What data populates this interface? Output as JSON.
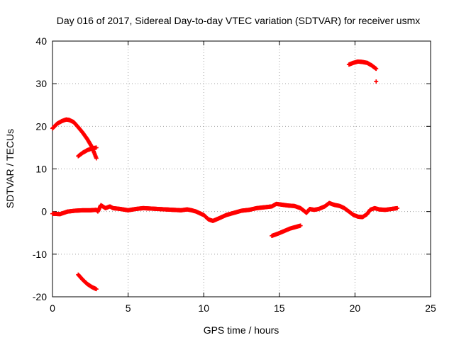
{
  "chart_data": {
    "type": "scatter",
    "title": "Day 016 of 2017, Sidereal Day-to-day VTEC variation (SDTVAR) for receiver usmx",
    "xlabel": "GPS time / hours",
    "ylabel": "SDTVAR / TECUs",
    "xlim": [
      0,
      25
    ],
    "ylim": [
      -20,
      40
    ],
    "xticks": [
      0,
      5,
      10,
      15,
      20,
      25
    ],
    "yticks": [
      -20,
      -10,
      0,
      10,
      20,
      30,
      40
    ],
    "grid": true,
    "marker": "plus",
    "color": "#ff0000",
    "series": [
      {
        "name": "main-track",
        "x": [
          0.0,
          0.5,
          1.0,
          1.5,
          2.0,
          2.5,
          2.9,
          3.0,
          3.2,
          3.5,
          3.8,
          4.0,
          4.5,
          5.0,
          5.5,
          6.0,
          6.5,
          7.0,
          7.5,
          8.0,
          8.5,
          8.9,
          9.2,
          9.5,
          9.8,
          10.0,
          10.3,
          10.6,
          11.0,
          11.5,
          12.0,
          12.5,
          13.0,
          13.5,
          14.0,
          14.5,
          14.8,
          15.2,
          15.6,
          16.0,
          16.4,
          16.8,
          17.0,
          17.3,
          17.6,
          18.0,
          18.3,
          18.6,
          19.0,
          19.3,
          19.6,
          19.9,
          20.2,
          20.5,
          20.8,
          21.0,
          21.3,
          21.6,
          22.0,
          22.4,
          22.8
        ],
        "y": [
          -0.5,
          -0.6,
          0.0,
          0.2,
          0.3,
          0.3,
          0.4,
          0.0,
          1.5,
          0.8,
          1.2,
          0.8,
          0.6,
          0.3,
          0.6,
          0.8,
          0.7,
          0.6,
          0.5,
          0.4,
          0.3,
          0.5,
          0.3,
          0.0,
          -0.5,
          -0.8,
          -1.8,
          -2.2,
          -1.6,
          -0.8,
          -0.3,
          0.2,
          0.4,
          0.8,
          1.0,
          1.2,
          1.8,
          1.6,
          1.4,
          1.3,
          0.8,
          -0.3,
          0.6,
          0.4,
          0.6,
          1.2,
          2.0,
          1.6,
          1.3,
          0.8,
          0.0,
          -0.8,
          -1.2,
          -1.3,
          -0.6,
          0.4,
          0.8,
          0.5,
          0.4,
          0.6,
          0.8
        ]
      },
      {
        "name": "arc-high",
        "x": [
          0.0,
          0.3,
          0.6,
          0.9,
          1.1,
          1.4,
          1.7,
          2.0,
          2.3,
          2.6,
          2.9
        ],
        "y": [
          19.5,
          20.6,
          21.2,
          21.6,
          21.5,
          21.0,
          19.8,
          18.5,
          17.0,
          15.2,
          12.5
        ]
      },
      {
        "name": "arc-mid",
        "x": [
          1.7,
          2.0,
          2.3,
          2.6,
          2.9
        ],
        "y": [
          13.0,
          13.8,
          14.4,
          14.8,
          15.0
        ]
      },
      {
        "name": "arc-low",
        "x": [
          1.7,
          2.0,
          2.3,
          2.6,
          2.9
        ],
        "y": [
          -14.8,
          -16.0,
          -17.0,
          -17.7,
          -18.2
        ]
      },
      {
        "name": "arc-neg",
        "x": [
          14.5,
          14.9,
          15.3,
          15.7,
          16.1,
          16.4
        ],
        "y": [
          -5.7,
          -5.2,
          -4.6,
          -4.0,
          -3.6,
          -3.3
        ]
      },
      {
        "name": "arc-top",
        "x": [
          19.6,
          19.9,
          20.2,
          20.5,
          20.8,
          21.1,
          21.4
        ],
        "y": [
          34.5,
          34.9,
          35.2,
          35.1,
          34.9,
          34.3,
          33.5
        ]
      },
      {
        "name": "outlier",
        "x": [
          21.4
        ],
        "y": [
          30.5
        ]
      }
    ]
  }
}
